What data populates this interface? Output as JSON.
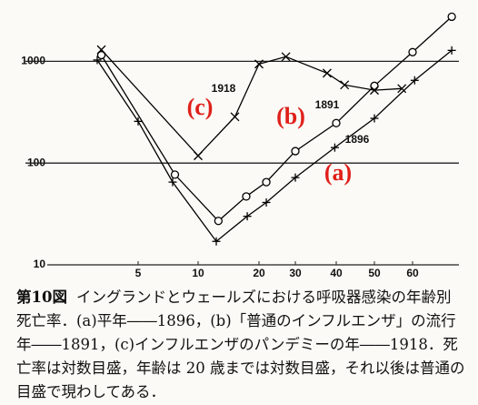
{
  "chart_data": {
    "type": "line",
    "x": null,
    "yscale": "log",
    "ylim": [
      10,
      3000
    ],
    "yticks": [
      10,
      100,
      1000
    ],
    "xlim": [
      1.4,
      72
    ],
    "xticks": [
      5,
      10,
      20,
      30,
      40,
      50,
      60
    ],
    "grid": true,
    "series": [
      {
        "name": "(a)",
        "color": "#000000",
        "label_color": "#e0201b",
        "marker": "+",
        "x": [
          3.15,
          5,
          7.45,
          12.3,
          17.5,
          21.7,
          30,
          39.6,
          50,
          60.5,
          70
        ],
        "values": [
          1030,
          257,
          65,
          17,
          30,
          41,
          72,
          142,
          275,
          650,
          1280
        ]
      },
      {
        "name": "(b)",
        "color": "#000000",
        "label_color": "#e0201b",
        "marker": "o",
        "x": [
          3.3,
          7.65,
          12.6,
          17.3,
          21.7,
          30,
          40,
          50,
          60,
          70
        ],
        "values": [
          1150,
          77,
          27,
          47,
          65,
          131,
          247,
          574,
          1230,
          2740
        ]
      },
      {
        "name": "(c)",
        "color": "#000000",
        "label_color": "#e0201b",
        "marker": "x",
        "x": [
          3.3,
          10,
          15.2,
          20,
          27,
          37.5,
          42,
          50,
          57
        ],
        "values": [
          1300,
          118,
          285,
          940,
          1110,
          765,
          586,
          520,
          540
        ]
      }
    ],
    "annotations": [
      "1918",
      "1891",
      "1896"
    ],
    "figure_label": "第10図",
    "caption": "イングランドとウェールズにおける呼吸器感染の年齢別死亡率．(a)平年――1896，(b)「普通のインフルエンザ」の流行年――1891，(c)インフルエンザのパンデミーの年――1918．死亡率は対数目盛，年齢は 20 歳までは対数目盛，それ以後は普通の目盛で現わしてある．"
  }
}
